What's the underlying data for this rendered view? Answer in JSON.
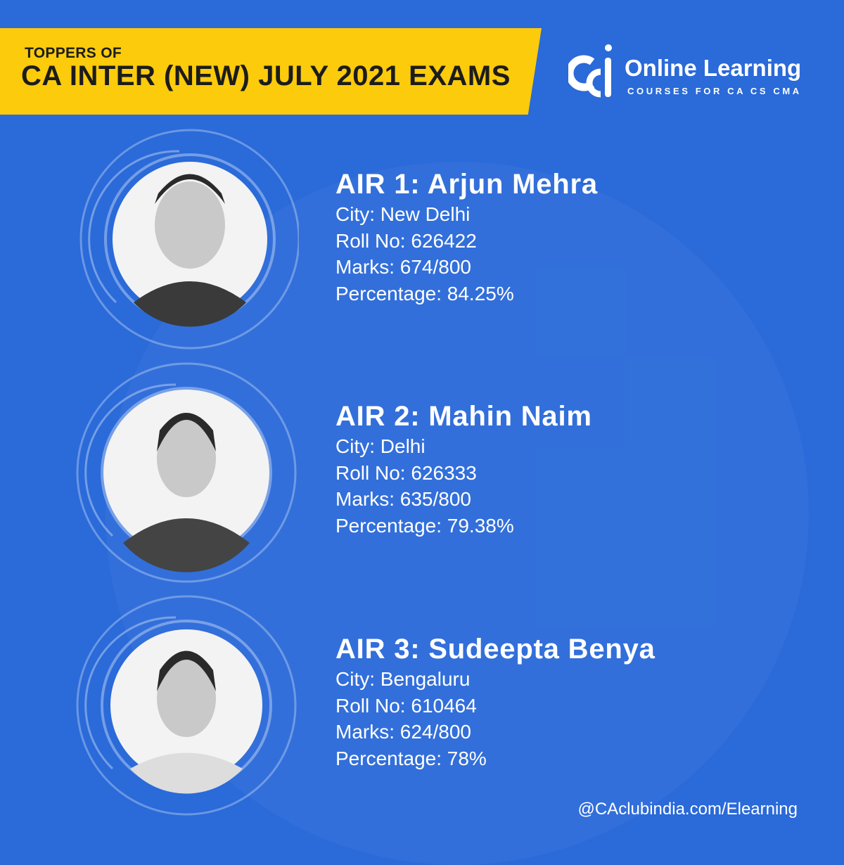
{
  "banner": {
    "subtitle": "TOPPERS OF",
    "title": "CA INTER (NEW) JULY 2021 EXAMS"
  },
  "logo": {
    "title": "Online Learning",
    "subtitle": "COURSES FOR CA CS CMA"
  },
  "toppers": [
    {
      "name": "AIR 1: Arjun Mehra",
      "city": "City: New Delhi",
      "roll": "Roll No: 626422",
      "marks": "Marks: 674/800",
      "percentage": "Percentage: 84.25%"
    },
    {
      "name": "AIR 2: Mahin Naim",
      "city": "City: Delhi",
      "roll": "Roll No: 626333",
      "marks": "Marks: 635/800",
      "percentage": "Percentage: 79.38%"
    },
    {
      "name": "AIR 3: Sudeepta Benya",
      "city": "City: Bengaluru",
      "roll": "Roll No: 610464",
      "marks": "Marks: 624/800",
      "percentage": "Percentage: 78%"
    }
  ],
  "footer": "@CAclubindia.com/Elearning",
  "colors": {
    "background": "#2a6ad9",
    "banner": "#fccb0b",
    "text": "#ffffff"
  }
}
